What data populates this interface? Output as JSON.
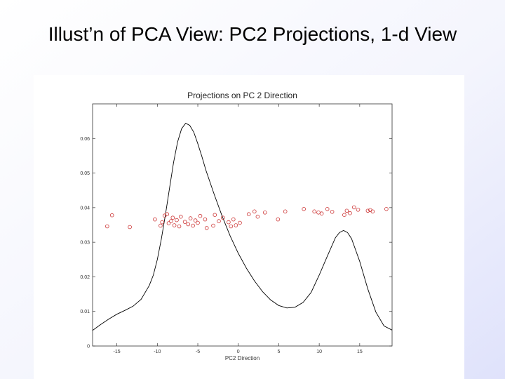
{
  "slide": {
    "title": "Illust’n of PCA View:    PC2 Projections, 1-d View"
  },
  "chart_data": {
    "type": "line",
    "title": "Projections on PC 2 Direction",
    "xlabel": "PC2 Direction",
    "ylabel": "",
    "xlim": [
      -18,
      19
    ],
    "ylim": [
      0,
      0.07
    ],
    "xticks": [
      -15,
      -10,
      -5,
      0,
      5,
      10,
      15
    ],
    "xtick_labels": [
      "-15",
      "-10",
      "-5",
      "0",
      "5",
      "10",
      "15"
    ],
    "yticks": [
      0,
      0.01,
      0.02,
      0.03,
      0.04,
      0.05,
      0.06
    ],
    "ytick_labels": [
      "0",
      "0.01",
      "0.02",
      "0.03",
      "0.04",
      "0.05",
      "0.06"
    ],
    "grid": false,
    "series": [
      {
        "style": "line",
        "color": "#000000",
        "x": [
          -18,
          -17,
          -16,
          -15,
          -14,
          -13,
          -12,
          -11,
          -10.5,
          -10,
          -9.5,
          -9,
          -8.5,
          -8,
          -7.5,
          -7,
          -6.5,
          -6,
          -5.5,
          -5,
          -4.5,
          -4,
          -3,
          -2,
          -1,
          0,
          1,
          2,
          3,
          4,
          5,
          6,
          7,
          8,
          9,
          10,
          11,
          12,
          12.5,
          13,
          13.5,
          14,
          15,
          16,
          17,
          18,
          19
        ],
        "y": [
          0.0045,
          0.0062,
          0.0078,
          0.0092,
          0.0103,
          0.0115,
          0.0135,
          0.0175,
          0.0205,
          0.025,
          0.031,
          0.038,
          0.0455,
          0.053,
          0.059,
          0.0628,
          0.0644,
          0.0638,
          0.0618,
          0.0585,
          0.0548,
          0.0508,
          0.044,
          0.0376,
          0.0318,
          0.0268,
          0.0225,
          0.0188,
          0.0157,
          0.0133,
          0.0117,
          0.011,
          0.0112,
          0.0126,
          0.0155,
          0.0205,
          0.026,
          0.0313,
          0.0328,
          0.0334,
          0.0328,
          0.031,
          0.0245,
          0.0165,
          0.0098,
          0.0058,
          0.0046
        ]
      },
      {
        "style": "scatter",
        "marker": "open-circle",
        "color": "#cc3333",
        "x": [
          -16.2,
          -15.6,
          -13.4,
          -10.3,
          -9.6,
          -9.4,
          -9.1,
          -8.8,
          -8.6,
          -8.3,
          -8.1,
          -7.9,
          -7.6,
          -7.3,
          -7.1,
          -6.6,
          -6.2,
          -5.9,
          -5.6,
          -5.3,
          -5.0,
          -4.7,
          -4.1,
          -3.9,
          -3.1,
          -2.9,
          -2.4,
          -1.9,
          -1.2,
          -0.9,
          -0.6,
          -0.3,
          0.2,
          1.3,
          2.0,
          2.4,
          3.3,
          4.9,
          5.8,
          8.1,
          9.4,
          9.9,
          10.3,
          11.0,
          11.6,
          13.1,
          13.4,
          13.8,
          14.3,
          14.8,
          16.0,
          16.3,
          16.6,
          18.3
        ],
        "y": [
          0.0346,
          0.0378,
          0.0344,
          0.0366,
          0.0348,
          0.0358,
          0.0377,
          0.0381,
          0.0355,
          0.0361,
          0.0371,
          0.0349,
          0.0364,
          0.0346,
          0.0374,
          0.0359,
          0.0352,
          0.0369,
          0.0348,
          0.0363,
          0.0356,
          0.0376,
          0.0366,
          0.0341,
          0.0348,
          0.0379,
          0.0361,
          0.0371,
          0.0358,
          0.0346,
          0.0366,
          0.0349,
          0.0356,
          0.0381,
          0.0389,
          0.0374,
          0.0386,
          0.0366,
          0.0389,
          0.0396,
          0.0389,
          0.0386,
          0.0383,
          0.0396,
          0.0388,
          0.0379,
          0.0391,
          0.0384,
          0.0401,
          0.0394,
          0.0391,
          0.0393,
          0.0389,
          0.0396
        ]
      }
    ]
  }
}
